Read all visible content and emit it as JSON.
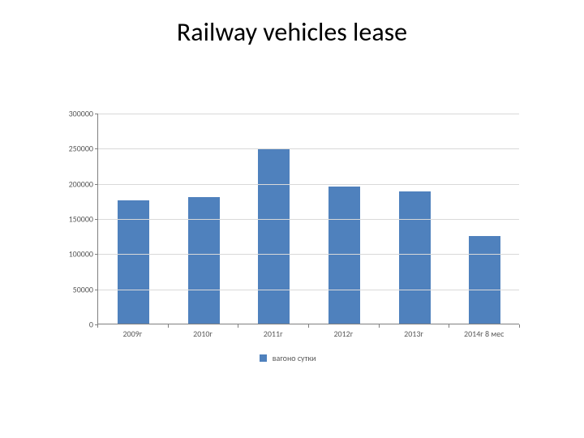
{
  "title": "Railway vehicles lease",
  "title_fontsize": 32,
  "title_color": "#000000",
  "chart": {
    "type": "bar",
    "categories": [
      "2009г",
      "2010г",
      "2011г",
      "2012г",
      "2013г",
      "2014г 8 мес"
    ],
    "values": [
      175000,
      180000,
      248000,
      195000,
      188000,
      125000
    ],
    "bar_color": "#4f81bd",
    "bar_width": 0.45,
    "ylim": [
      0,
      300000
    ],
    "ytick_step": 50000,
    "yticks": [
      "0",
      "50000",
      "100000",
      "150000",
      "200000",
      "250000",
      "300000"
    ],
    "grid_color": "#d9d9d9",
    "axis_color": "#808080",
    "tick_color": "#808080",
    "background_color": "#ffffff",
    "label_fontsize": 10,
    "tick_fontsize": 10,
    "tick_label_color": "#595959",
    "legend": {
      "label": "вагоно сутки",
      "swatch_color": "#4f81bd",
      "fontsize": 10
    }
  }
}
